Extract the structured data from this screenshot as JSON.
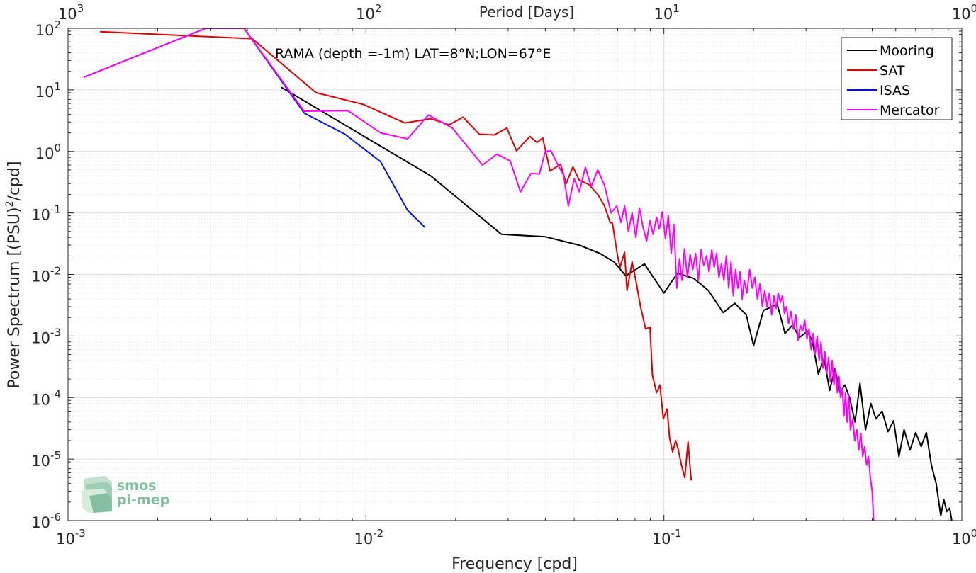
{
  "chart_data": {
    "type": "line",
    "title": "",
    "annotation": "RAMA (depth =-1m) LAT=8°N;LON=67°E",
    "xlabel": "Frequency [cpd]",
    "ylabel": "Power Spectrum [(PSU)²/cpd]",
    "top_xlabel": "Period [Days]",
    "xscale": "log",
    "yscale": "log",
    "xlim": [
      0.001,
      1
    ],
    "ylim": [
      1e-06,
      100
    ],
    "grid": true,
    "legend_position": "top-right",
    "x_ticks": [
      {
        "value": 0.001,
        "base": "10",
        "exp": "-3"
      },
      {
        "value": 0.01,
        "base": "10",
        "exp": "-2"
      },
      {
        "value": 0.1,
        "base": "10",
        "exp": "-1"
      },
      {
        "value": 1,
        "base": "10",
        "exp": "0"
      }
    ],
    "top_ticks": [
      {
        "value": 0.001,
        "base": "10",
        "exp": "3"
      },
      {
        "value": 0.01,
        "base": "10",
        "exp": "2"
      },
      {
        "value": 0.1,
        "base": "10",
        "exp": "1"
      },
      {
        "value": 1,
        "base": "10",
        "exp": "0"
      }
    ],
    "y_ticks": [
      {
        "value": 100,
        "base": "10",
        "exp": "2"
      },
      {
        "value": 10,
        "base": "10",
        "exp": "1"
      },
      {
        "value": 1,
        "base": "10",
        "exp": "0"
      },
      {
        "value": 0.1,
        "base": "10",
        "exp": "-1"
      },
      {
        "value": 0.01,
        "base": "10",
        "exp": "-2"
      },
      {
        "value": 0.001,
        "base": "10",
        "exp": "-3"
      },
      {
        "value": 0.0001,
        "base": "10",
        "exp": "-4"
      },
      {
        "value": 1e-05,
        "base": "10",
        "exp": "-5"
      },
      {
        "value": 1e-06,
        "base": "10",
        "exp": "-6"
      }
    ],
    "series": [
      {
        "name": "Mooring",
        "color": "#000000",
        "points": [
          [
            0.0052,
            11
          ],
          [
            0.0165,
            0.4
          ],
          [
            0.0285,
            0.045
          ],
          [
            0.04,
            0.041
          ],
          [
            0.052,
            0.03
          ],
          [
            0.061,
            0.022
          ],
          [
            0.068,
            0.016
          ],
          [
            0.0745,
            0.0095
          ],
          [
            0.086,
            0.0148
          ],
          [
            0.1,
            0.005
          ],
          [
            0.111,
            0.0105
          ],
          [
            0.126,
            0.0086
          ],
          [
            0.141,
            0.0055
          ],
          [
            0.158,
            0.0024
          ],
          [
            0.173,
            0.0034
          ],
          [
            0.189,
            0.0022
          ],
          [
            0.2,
            0.0007
          ],
          [
            0.216,
            0.0026
          ],
          [
            0.24,
            0.0033
          ],
          [
            0.255,
            0.0011
          ],
          [
            0.27,
            0.0015
          ],
          [
            0.285,
            0.00095
          ],
          [
            0.304,
            0.0012
          ],
          [
            0.315,
            0.00082
          ],
          [
            0.33,
            0.00024
          ],
          [
            0.345,
            0.00043
          ],
          [
            0.36,
            0.00013
          ],
          [
            0.375,
            0.0003
          ],
          [
            0.39,
            0.00012
          ],
          [
            0.405,
            0.00016
          ],
          [
            0.42,
            0.0001
          ],
          [
            0.438,
            4e-05
          ],
          [
            0.455,
            0.00017
          ],
          [
            0.475,
            3e-05
          ],
          [
            0.495,
            8e-05
          ],
          [
            0.515,
            4.5e-05
          ],
          [
            0.54,
            6e-05
          ],
          [
            0.565,
            2.8e-05
          ],
          [
            0.59,
            4.2e-05
          ],
          [
            0.615,
            1.1e-05
          ],
          [
            0.64,
            3e-05
          ],
          [
            0.67,
            1.4e-05
          ],
          [
            0.7,
            2.7e-05
          ],
          [
            0.73,
            1.6e-05
          ],
          [
            0.76,
            2.7e-05
          ],
          [
            0.79,
            8e-06
          ],
          [
            0.82,
            4e-06
          ],
          [
            0.85,
            1.2e-06
          ],
          [
            0.87,
            2.2e-06
          ],
          [
            0.89,
            1.4e-06
          ],
          [
            0.91,
            1.6e-06
          ],
          [
            0.925,
            1e-06
          ]
        ]
      },
      {
        "name": "SAT",
        "color": "#e00000",
        "points": [
          [
            0.00128,
            88
          ],
          [
            0.00415,
            68
          ],
          [
            0.0068,
            9
          ],
          [
            0.0098,
            5.8
          ],
          [
            0.0135,
            2.9
          ],
          [
            0.0165,
            3.4
          ],
          [
            0.019,
            2.7
          ],
          [
            0.0212,
            3.6
          ],
          [
            0.024,
            1.9
          ],
          [
            0.027,
            1.85
          ],
          [
            0.0297,
            2.4
          ],
          [
            0.032,
            1.02
          ],
          [
            0.0355,
            1.75
          ],
          [
            0.0375,
            1.4
          ],
          [
            0.0392,
            1.65
          ],
          [
            0.0415,
            0.48
          ],
          [
            0.045,
            0.62
          ],
          [
            0.047,
            0.3
          ],
          [
            0.0495,
            0.56
          ],
          [
            0.052,
            0.34
          ],
          [
            0.056,
            0.29
          ],
          [
            0.06,
            0.2
          ],
          [
            0.0632,
            0.13
          ],
          [
            0.066,
            0.07
          ],
          [
            0.0672,
            0.068
          ],
          [
            0.0698,
            0.021
          ],
          [
            0.0712,
            0.013
          ],
          [
            0.0738,
            0.023
          ],
          [
            0.0752,
            0.0055
          ],
          [
            0.0782,
            0.016
          ],
          [
            0.0805,
            0.008
          ],
          [
            0.0835,
            0.003
          ],
          [
            0.0855,
            0.0018
          ],
          [
            0.0868,
            0.0013
          ],
          [
            0.0898,
            0.0014
          ],
          [
            0.0915,
            0.00023
          ],
          [
            0.0945,
            0.00012
          ],
          [
            0.097,
            0.00016
          ],
          [
            0.0995,
            4.5e-05
          ],
          [
            0.1025,
            6.5e-05
          ],
          [
            0.1045,
            2.2e-05
          ],
          [
            0.107,
            1.3e-05
          ],
          [
            0.1095,
            2e-05
          ],
          [
            0.1115,
            1.5e-05
          ],
          [
            0.1145,
            8e-06
          ],
          [
            0.1175,
            5e-06
          ],
          [
            0.1205,
            1.9e-05
          ],
          [
            0.1235,
            4.5e-06
          ]
        ]
      },
      {
        "name": "ISAS",
        "color": "#0010e0",
        "points": [
          [
            0.00113,
            16
          ],
          [
            0.0029,
            100
          ],
          [
            0.0039,
            100
          ],
          [
            0.0062,
            4.2
          ],
          [
            0.0085,
            1.9
          ],
          [
            0.0112,
            0.68
          ],
          [
            0.0138,
            0.11
          ],
          [
            0.0158,
            0.058
          ]
        ]
      },
      {
        "name": "Mercator",
        "color": "#ff00ff",
        "points": [
          [
            0.00113,
            16
          ],
          [
            0.0029,
            100
          ],
          [
            0.0039,
            100
          ],
          [
            0.0062,
            4.5
          ],
          [
            0.0087,
            4.6
          ],
          [
            0.0112,
            2.0
          ],
          [
            0.0138,
            1.6
          ],
          [
            0.0162,
            3.9
          ],
          [
            0.0195,
            2.4
          ],
          [
            0.0246,
            0.6
          ],
          [
            0.0275,
            0.9
          ],
          [
            0.0305,
            0.7
          ],
          [
            0.033,
            0.22
          ],
          [
            0.0358,
            0.44
          ],
          [
            0.0382,
            0.43
          ],
          [
            0.04,
            1.0
          ],
          [
            0.0418,
            1.02
          ],
          [
            0.0445,
            0.55
          ],
          [
            0.046,
            0.42
          ],
          [
            0.0478,
            0.13
          ],
          [
            0.05,
            0.36
          ],
          [
            0.052,
            0.22
          ],
          [
            0.0545,
            0.55
          ],
          [
            0.057,
            0.27
          ],
          [
            0.06,
            0.5
          ],
          [
            0.0632,
            0.28
          ],
          [
            0.0665,
            0.1
          ],
          [
            0.0695,
            0.13
          ],
          [
            0.0718,
            0.07
          ],
          [
            0.0738,
            0.13
          ],
          [
            0.076,
            0.05
          ],
          [
            0.0782,
            0.1
          ],
          [
            0.0805,
            0.04
          ],
          [
            0.0828,
            0.12
          ],
          [
            0.085,
            0.06
          ],
          [
            0.0875,
            0.035
          ],
          [
            0.0898,
            0.075
          ],
          [
            0.092,
            0.045
          ],
          [
            0.0945,
            0.085
          ],
          [
            0.0965,
            0.055
          ],
          [
            0.0988,
            0.104
          ],
          [
            0.1012,
            0.038
          ],
          [
            0.1035,
            0.09
          ],
          [
            0.1058,
            0.022
          ],
          [
            0.108,
            0.065
          ],
          [
            0.1105,
            0.006
          ],
          [
            0.1128,
            0.018
          ],
          [
            0.115,
            0.008
          ],
          [
            0.1172,
            0.026
          ],
          [
            0.12,
            0.009
          ],
          [
            0.1225,
            0.021
          ],
          [
            0.125,
            0.012
          ],
          [
            0.1278,
            0.022
          ],
          [
            0.1305,
            0.008
          ],
          [
            0.1332,
            0.025
          ],
          [
            0.136,
            0.014
          ],
          [
            0.139,
            0.02
          ],
          [
            0.1418,
            0.011
          ],
          [
            0.1448,
            0.025
          ],
          [
            0.1475,
            0.013
          ],
          [
            0.1502,
            0.022
          ],
          [
            0.153,
            0.009
          ],
          [
            0.156,
            0.015
          ],
          [
            0.159,
            0.008
          ],
          [
            0.162,
            0.02
          ],
          [
            0.165,
            0.006
          ],
          [
            0.168,
            0.016
          ],
          [
            0.171,
            0.0045
          ],
          [
            0.174,
            0.012
          ],
          [
            0.177,
            0.006
          ],
          [
            0.18,
            0.011
          ],
          [
            0.183,
            0.004
          ],
          [
            0.186,
            0.008
          ],
          [
            0.19,
            0.005
          ],
          [
            0.194,
            0.012
          ],
          [
            0.198,
            0.006
          ],
          [
            0.202,
            0.009
          ],
          [
            0.206,
            0.004
          ],
          [
            0.21,
            0.007
          ],
          [
            0.214,
            0.003
          ],
          [
            0.218,
            0.0055
          ],
          [
            0.222,
            0.003
          ],
          [
            0.226,
            0.005
          ],
          [
            0.23,
            0.0022
          ],
          [
            0.234,
            0.0045
          ],
          [
            0.238,
            0.0028
          ],
          [
            0.242,
            0.005
          ],
          [
            0.246,
            0.0035
          ],
          [
            0.25,
            0.0045
          ],
          [
            0.254,
            0.0023
          ],
          [
            0.258,
            0.003
          ],
          [
            0.262,
            0.0016
          ],
          [
            0.267,
            0.0025
          ],
          [
            0.272,
            0.0013
          ],
          [
            0.277,
            0.0022
          ],
          [
            0.282,
            0.00085
          ],
          [
            0.287,
            0.0015
          ],
          [
            0.292,
            0.0012
          ],
          [
            0.297,
            0.0018
          ],
          [
            0.302,
            0.0009
          ],
          [
            0.307,
            0.0013
          ],
          [
            0.312,
            0.0006
          ],
          [
            0.317,
            0.0011
          ],
          [
            0.322,
            0.0005
          ],
          [
            0.327,
            0.001
          ],
          [
            0.332,
            0.0004
          ],
          [
            0.337,
            0.0008
          ],
          [
            0.342,
            0.0003
          ],
          [
            0.347,
            0.00055
          ],
          [
            0.352,
            0.00025
          ],
          [
            0.357,
            0.00045
          ],
          [
            0.362,
            0.00018
          ],
          [
            0.367,
            0.0004
          ],
          [
            0.372,
            0.00016
          ],
          [
            0.377,
            0.0003
          ],
          [
            0.382,
            0.00012
          ],
          [
            0.387,
            0.00022
          ],
          [
            0.392,
            0.0001
          ],
          [
            0.397,
            0.00014
          ],
          [
            0.402,
            5e-05
          ],
          [
            0.407,
            0.00012
          ],
          [
            0.412,
            4e-05
          ],
          [
            0.417,
            0.00011
          ],
          [
            0.423,
            3e-05
          ],
          [
            0.43,
            4.5e-05
          ],
          [
            0.437,
            2e-05
          ],
          [
            0.444,
            3e-05
          ],
          [
            0.451,
            1.4e-05
          ],
          [
            0.458,
            2.6e-05
          ],
          [
            0.465,
            1.1e-05
          ],
          [
            0.472,
            1.6e-05
          ],
          [
            0.479,
            8e-06
          ],
          [
            0.486,
            1.1e-05
          ],
          [
            0.493,
            5e-06
          ],
          [
            0.5,
            3e-06
          ],
          [
            0.506,
            1e-06
          ]
        ]
      }
    ]
  },
  "logo": {
    "line1": "smos",
    "line2": "pi-mep"
  },
  "colors": {
    "axis": "#262626",
    "grid": "#dcdcdc",
    "minor_grid": "#ebebeb"
  }
}
